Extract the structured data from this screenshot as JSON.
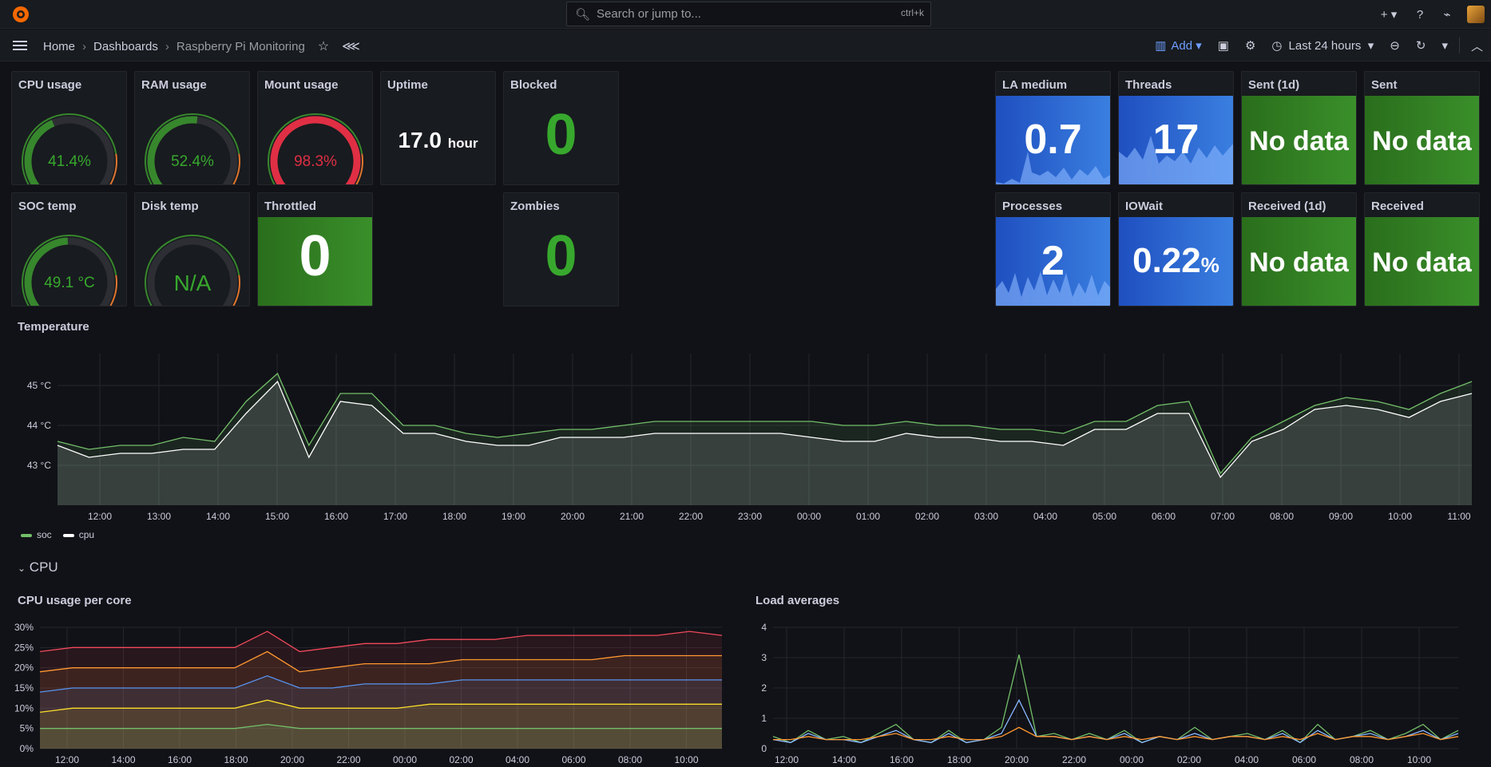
{
  "search": {
    "placeholder": "Search or jump to...",
    "shortcut": "ctrl+k"
  },
  "breadcrumb": {
    "home": "Home",
    "dashboards": "Dashboards",
    "current": "Raspberry Pi Monitoring"
  },
  "toolbar": {
    "add_label": "Add",
    "time_range": "Last 24 hours"
  },
  "gauges": [
    {
      "title": "CPU usage",
      "value": "41.4%",
      "fraction": 0.414,
      "color": "#37872d"
    },
    {
      "title": "RAM usage",
      "value": "52.4%",
      "fraction": 0.524,
      "color": "#37872d"
    },
    {
      "title": "Mount usage",
      "value": "98.3%",
      "fraction": 0.983,
      "color": "#e02f44"
    },
    {
      "title": "SOC temp",
      "value": "49.1 °C",
      "fraction": 0.491,
      "color": "#37872d"
    },
    {
      "title": "Disk temp",
      "value": "N/A",
      "fraction": 0,
      "color": "#37872d"
    }
  ],
  "stats": {
    "uptime": {
      "title": "Uptime",
      "value": "17.0",
      "unit": "hour"
    },
    "blocked": {
      "title": "Blocked",
      "value": "0"
    },
    "throttled": {
      "title": "Throttled",
      "value": "0"
    },
    "zombies": {
      "title": "Zombies",
      "value": "0"
    },
    "la_medium": {
      "title": "LA medium",
      "value": "0.7"
    },
    "threads": {
      "title": "Threads",
      "value": "17"
    },
    "sent_1d": {
      "title": "Sent (1d)",
      "value": "No data"
    },
    "sent": {
      "title": "Sent",
      "value": "No data"
    },
    "processes": {
      "title": "Processes",
      "value": "2"
    },
    "iowait": {
      "title": "IOWait",
      "value": "0.22",
      "unit": "%"
    },
    "received_1d": {
      "title": "Received (1d)",
      "value": "No data"
    },
    "received": {
      "title": "Received",
      "value": "No data"
    }
  },
  "temperature": {
    "title": "Temperature",
    "legend": [
      {
        "name": "soc",
        "color": "#73bf69"
      },
      {
        "name": "cpu",
        "color": "#ffffff"
      }
    ]
  },
  "cpu_row": {
    "label": "CPU"
  },
  "cpu_per_core": {
    "title": "CPU usage per core"
  },
  "load_averages": {
    "title": "Load averages"
  },
  "chart_data": [
    {
      "type": "area",
      "title": "Temperature",
      "y_ticks": [
        "45 °C",
        "44 °C",
        "43 °C"
      ],
      "ylim": [
        42,
        45.8
      ],
      "x_ticks": [
        "12:00",
        "13:00",
        "14:00",
        "15:00",
        "16:00",
        "17:00",
        "18:00",
        "19:00",
        "20:00",
        "21:00",
        "22:00",
        "23:00",
        "00:00",
        "01:00",
        "02:00",
        "03:00",
        "04:00",
        "05:00",
        "06:00",
        "07:00",
        "08:00",
        "09:00",
        "10:00",
        "11:00"
      ],
      "series": [
        {
          "name": "soc",
          "color": "#73bf69",
          "values": [
            43.6,
            43.4,
            43.5,
            43.5,
            43.7,
            43.6,
            44.6,
            45.3,
            43.5,
            44.8,
            44.8,
            44.0,
            44.0,
            43.8,
            43.7,
            43.8,
            43.9,
            43.9,
            44.0,
            44.1,
            44.1,
            44.1,
            44.1,
            44.1,
            44.1,
            44.0,
            44.0,
            44.1,
            44.0,
            44.0,
            43.9,
            43.9,
            43.8,
            44.1,
            44.1,
            44.5,
            44.6,
            42.8,
            43.7,
            44.1,
            44.5,
            44.7,
            44.6,
            44.4,
            44.8,
            45.1
          ]
        },
        {
          "name": "cpu",
          "color": "#ffffff",
          "values": [
            43.5,
            43.2,
            43.3,
            43.3,
            43.4,
            43.4,
            44.3,
            45.1,
            43.2,
            44.6,
            44.5,
            43.8,
            43.8,
            43.6,
            43.5,
            43.5,
            43.7,
            43.7,
            43.7,
            43.8,
            43.8,
            43.8,
            43.8,
            43.8,
            43.7,
            43.6,
            43.6,
            43.8,
            43.7,
            43.7,
            43.6,
            43.6,
            43.5,
            43.9,
            43.9,
            44.3,
            44.3,
            42.7,
            43.6,
            43.9,
            44.4,
            44.5,
            44.4,
            44.2,
            44.6,
            44.8
          ]
        }
      ]
    },
    {
      "type": "area",
      "title": "CPU usage per core",
      "y_ticks": [
        "30%",
        "25%",
        "20%",
        "15%",
        "10%",
        "5%",
        "0%"
      ],
      "ylim": [
        0,
        30
      ],
      "x_ticks": [
        "12:00",
        "14:00",
        "16:00",
        "18:00",
        "20:00",
        "22:00",
        "00:00",
        "02:00",
        "04:00",
        "06:00",
        "08:00",
        "10:00"
      ],
      "series": [
        {
          "color": "#f2495c",
          "values": [
            24,
            25,
            25,
            25,
            25,
            25,
            25,
            29,
            24,
            25,
            26,
            26,
            27,
            27,
            27,
            28,
            28,
            28,
            28,
            28,
            29,
            28
          ]
        },
        {
          "color": "#ff9830",
          "values": [
            19,
            20,
            20,
            20,
            20,
            20,
            20,
            24,
            19,
            20,
            21,
            21,
            21,
            22,
            22,
            22,
            22,
            22,
            23,
            23,
            23,
            23
          ]
        },
        {
          "color": "#5794f2",
          "values": [
            14,
            15,
            15,
            15,
            15,
            15,
            15,
            18,
            15,
            15,
            16,
            16,
            16,
            17,
            17,
            17,
            17,
            17,
            17,
            17,
            17,
            17
          ]
        },
        {
          "color": "#fade2a",
          "values": [
            9,
            10,
            10,
            10,
            10,
            10,
            10,
            12,
            10,
            10,
            10,
            10,
            11,
            11,
            11,
            11,
            11,
            11,
            11,
            11,
            11,
            11
          ]
        },
        {
          "color": "#73bf69",
          "values": [
            5,
            5,
            5,
            5,
            5,
            5,
            5,
            6,
            5,
            5,
            5,
            5,
            5,
            5,
            5,
            5,
            5,
            5,
            5,
            5,
            5,
            5
          ]
        }
      ]
    },
    {
      "type": "line",
      "title": "Load averages",
      "y_ticks": [
        "4",
        "3",
        "2",
        "1",
        "0"
      ],
      "ylim": [
        0,
        4
      ],
      "x_ticks": [
        "12:00",
        "14:00",
        "16:00",
        "18:00",
        "20:00",
        "22:00",
        "00:00",
        "02:00",
        "04:00",
        "06:00",
        "08:00",
        "10:00"
      ],
      "series": [
        {
          "color": "#73bf69",
          "values": [
            0.4,
            0.2,
            0.6,
            0.3,
            0.4,
            0.2,
            0.5,
            0.8,
            0.3,
            0.2,
            0.6,
            0.2,
            0.3,
            0.7,
            3.1,
            0.4,
            0.5,
            0.3,
            0.5,
            0.3,
            0.6,
            0.2,
            0.4,
            0.3,
            0.7,
            0.3,
            0.4,
            0.5,
            0.3,
            0.6,
            0.2,
            0.8,
            0.3,
            0.4,
            0.6,
            0.3,
            0.5,
            0.8,
            0.3,
            0.6
          ]
        },
        {
          "color": "#8ab8ff",
          "values": [
            0.3,
            0.2,
            0.5,
            0.3,
            0.3,
            0.2,
            0.4,
            0.6,
            0.3,
            0.2,
            0.5,
            0.2,
            0.3,
            0.5,
            1.6,
            0.4,
            0.4,
            0.3,
            0.4,
            0.3,
            0.5,
            0.2,
            0.4,
            0.3,
            0.5,
            0.3,
            0.4,
            0.4,
            0.3,
            0.5,
            0.2,
            0.6,
            0.3,
            0.4,
            0.5,
            0.3,
            0.4,
            0.6,
            0.3,
            0.5
          ]
        },
        {
          "color": "#ff9830",
          "values": [
            0.3,
            0.3,
            0.4,
            0.3,
            0.3,
            0.3,
            0.4,
            0.5,
            0.3,
            0.3,
            0.4,
            0.3,
            0.3,
            0.4,
            0.7,
            0.4,
            0.4,
            0.3,
            0.4,
            0.3,
            0.4,
            0.3,
            0.4,
            0.3,
            0.4,
            0.3,
            0.4,
            0.4,
            0.3,
            0.4,
            0.3,
            0.5,
            0.3,
            0.4,
            0.4,
            0.3,
            0.4,
            0.5,
            0.3,
            0.4
          ]
        }
      ]
    }
  ]
}
